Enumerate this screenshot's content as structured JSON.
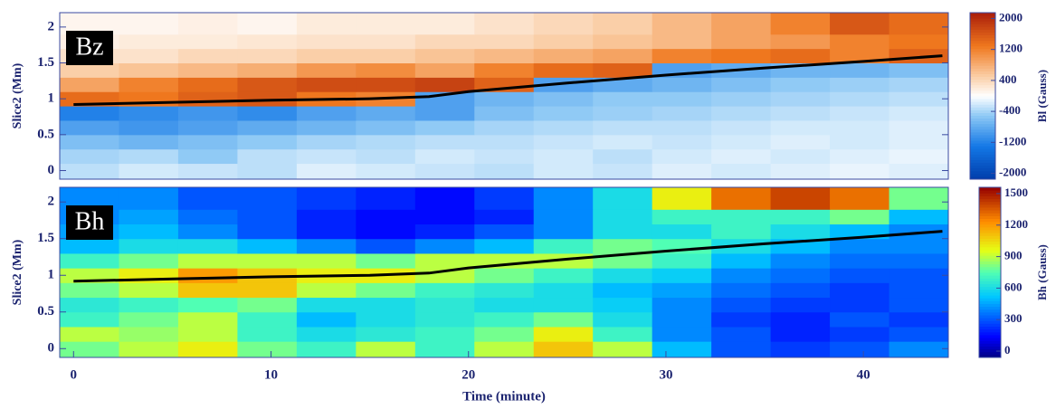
{
  "chart_data": [
    {
      "type": "heatmap",
      "panel_label": "Bz",
      "ylabel": "Slice2 (Mm)",
      "x_bins": [
        -0.7,
        2.3,
        5.3,
        8.3,
        11.3,
        14.3,
        17.3,
        20.3,
        23.3,
        26.3,
        29.3,
        32.3,
        35.3,
        38.3,
        41.3,
        44.3
      ],
      "y_bins": [
        -0.12,
        0.1,
        0.3,
        0.5,
        0.7,
        0.9,
        1.1,
        1.3,
        1.5,
        1.7,
        1.9,
        2.2
      ],
      "values": [
        [
          -300,
          -200,
          -250,
          -300,
          -150,
          -200,
          -250,
          -300,
          -200,
          -250,
          -150,
          -200,
          -150,
          -100,
          -150
        ],
        [
          -400,
          -350,
          -500,
          -300,
          -250,
          -300,
          -200,
          -250,
          -200,
          -300,
          -200,
          -150,
          -200,
          -150,
          -100
        ],
        [
          -600,
          -700,
          -600,
          -500,
          -400,
          -350,
          -300,
          -300,
          -250,
          -200,
          -250,
          -200,
          -150,
          -200,
          -150
        ],
        [
          -900,
          -1000,
          -900,
          -800,
          -700,
          -600,
          -500,
          -400,
          -350,
          -300,
          -300,
          -250,
          -200,
          -200,
          -150
        ],
        [
          -1200,
          -1100,
          -1000,
          -1100,
          -900,
          -800,
          -900,
          -600,
          -500,
          -450,
          -400,
          -350,
          -300,
          -250,
          -200
        ],
        [
          1400,
          1300,
          1500,
          1600,
          1300,
          1200,
          -900,
          -700,
          -600,
          -500,
          -500,
          -450,
          -400,
          -350,
          -300
        ],
        [
          900,
          1200,
          1400,
          1600,
          1700,
          1700,
          1800,
          1500,
          -900,
          -800,
          -700,
          -600,
          -500,
          -450,
          -400
        ],
        [
          500,
          600,
          700,
          800,
          1000,
          1100,
          900,
          1200,
          1400,
          1500,
          -900,
          -800,
          -700,
          -700,
          -600
        ],
        [
          300,
          300,
          400,
          400,
          500,
          500,
          600,
          700,
          800,
          900,
          1200,
          1300,
          1400,
          1200,
          1500
        ],
        [
          150,
          200,
          200,
          250,
          300,
          300,
          400,
          400,
          500,
          600,
          700,
          900,
          1000,
          1200,
          1300
        ],
        [
          100,
          100,
          150,
          100,
          200,
          200,
          200,
          300,
          400,
          500,
          700,
          900,
          1200,
          1600,
          1400
        ]
      ],
      "colormap": "blue-white-orange",
      "xlim": [
        -0.7,
        44.3
      ],
      "ylim": [
        -0.12,
        2.2
      ],
      "yticks": [
        0.0,
        0.5,
        1.0,
        1.5,
        2.0
      ],
      "line": {
        "color": "#000000",
        "x": [
          0,
          5,
          10,
          15,
          18,
          20,
          25,
          30,
          35,
          40,
          44
        ],
        "y": [
          0.92,
          0.95,
          0.98,
          1.0,
          1.03,
          1.1,
          1.22,
          1.33,
          1.43,
          1.52,
          1.6
        ]
      },
      "colorbar": {
        "label": "Bl (Gauss)",
        "zlim": [
          -2150,
          2150
        ],
        "ticks": [
          2000,
          1200,
          400,
          -400,
          -1200,
          -2000
        ]
      }
    },
    {
      "type": "heatmap",
      "panel_label": "Bh",
      "ylabel": "Slice2 (Mm)",
      "xlabel": "Time (minute)",
      "x_bins": [
        -0.7,
        2.3,
        5.3,
        8.3,
        11.3,
        14.3,
        17.3,
        20.3,
        23.3,
        26.3,
        29.3,
        32.3,
        35.3,
        38.3,
        41.3,
        44.3
      ],
      "y_bins": [
        -0.12,
        0.1,
        0.3,
        0.5,
        0.7,
        0.9,
        1.1,
        1.3,
        1.5,
        1.7,
        1.9,
        2.2
      ],
      "values": [
        [
          800,
          900,
          1000,
          800,
          700,
          900,
          700,
          900,
          1100,
          900,
          500,
          300,
          250,
          300,
          400
        ],
        [
          900,
          850,
          900,
          700,
          600,
          650,
          700,
          800,
          1000,
          700,
          400,
          300,
          200,
          250,
          300
        ],
        [
          700,
          800,
          900,
          700,
          500,
          600,
          650,
          700,
          800,
          600,
          400,
          250,
          200,
          300,
          250
        ],
        [
          650,
          700,
          750,
          800,
          600,
          600,
          650,
          600,
          600,
          550,
          400,
          300,
          250,
          250,
          300
        ],
        [
          800,
          900,
          1100,
          1100,
          900,
          800,
          700,
          650,
          600,
          500,
          450,
          350,
          300,
          250,
          300
        ],
        [
          900,
          1000,
          1200,
          1100,
          1000,
          1000,
          900,
          800,
          700,
          600,
          550,
          400,
          350,
          300,
          300
        ],
        [
          700,
          800,
          900,
          900,
          900,
          800,
          900,
          900,
          900,
          800,
          700,
          500,
          400,
          350,
          350
        ],
        [
          500,
          600,
          600,
          500,
          400,
          300,
          400,
          500,
          700,
          800,
          750,
          600,
          500,
          400,
          400
        ],
        [
          450,
          500,
          400,
          300,
          200,
          150,
          200,
          300,
          400,
          600,
          600,
          700,
          600,
          500,
          400
        ],
        [
          400,
          450,
          350,
          300,
          200,
          150,
          150,
          200,
          400,
          600,
          700,
          700,
          700,
          800,
          500
        ],
        [
          400,
          400,
          300,
          300,
          250,
          200,
          150,
          250,
          400,
          600,
          1000,
          1300,
          1400,
          1300,
          800
        ]
      ],
      "colormap": "jet",
      "xlim": [
        -0.7,
        44.3
      ],
      "ylim": [
        -0.12,
        2.2
      ],
      "yticks": [
        0.0,
        0.5,
        1.0,
        1.5,
        2.0
      ],
      "xticks": [
        0,
        10,
        20,
        30,
        40
      ],
      "line": {
        "color": "#000000",
        "x": [
          0,
          5,
          10,
          15,
          18,
          20,
          25,
          30,
          35,
          40,
          44
        ],
        "y": [
          0.92,
          0.95,
          0.98,
          1.0,
          1.03,
          1.1,
          1.22,
          1.33,
          1.43,
          1.52,
          1.6
        ]
      },
      "colorbar": {
        "label": "Bh (Gauss)",
        "zlim": [
          -60,
          1560
        ],
        "ticks": [
          1500,
          1200,
          900,
          600,
          300,
          0
        ]
      }
    }
  ]
}
